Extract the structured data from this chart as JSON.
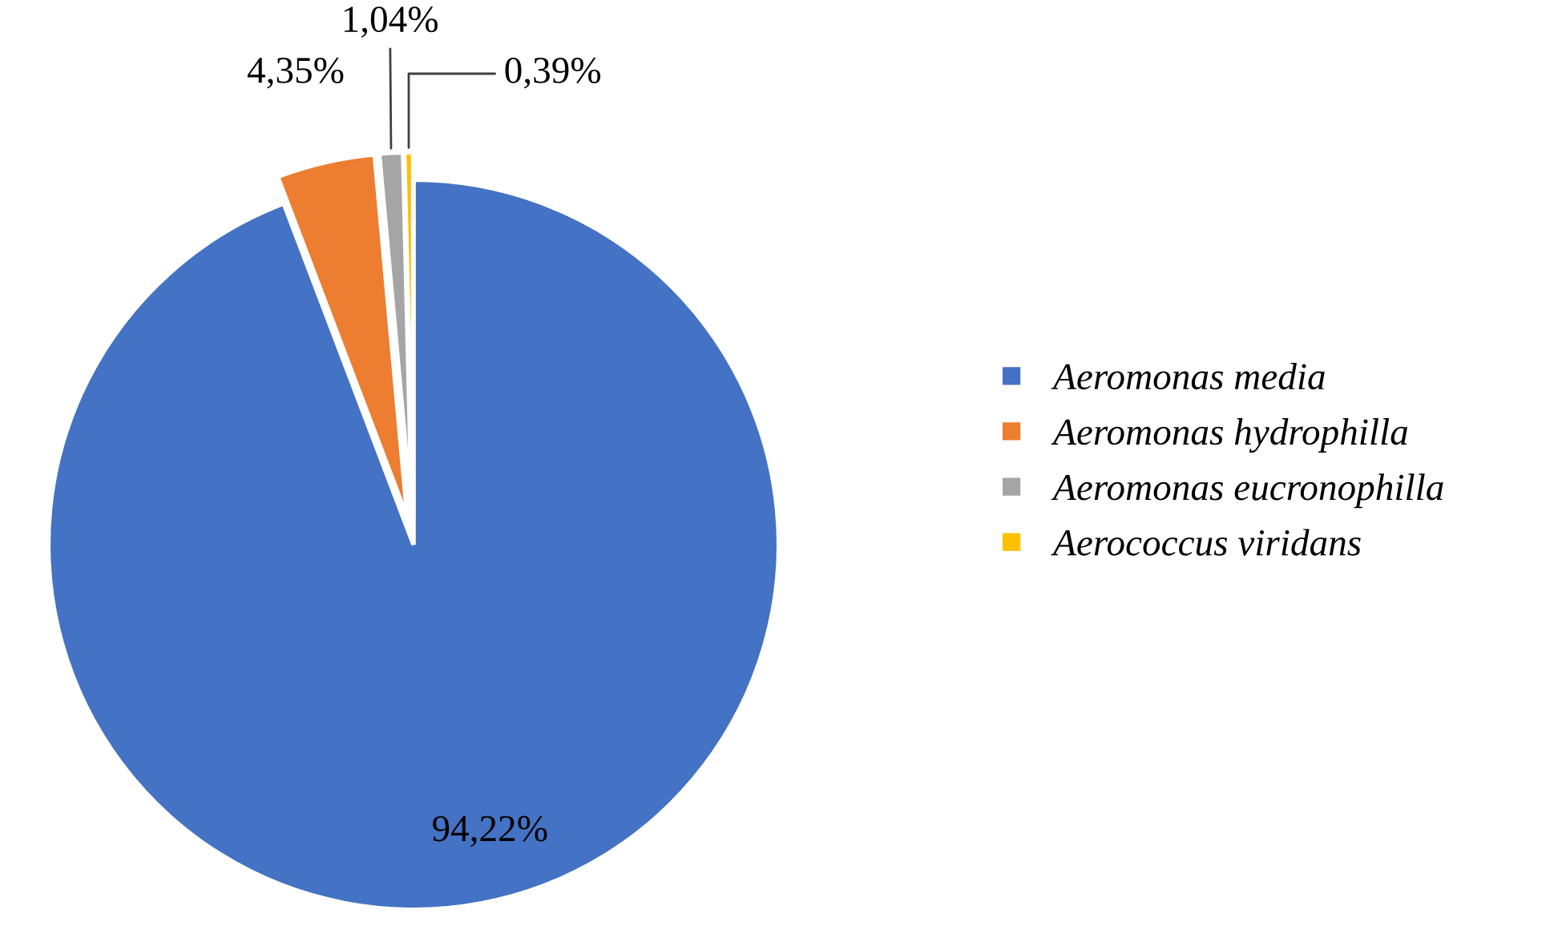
{
  "chart_data": {
    "type": "pie",
    "categories": [
      "Aeromonas media",
      "Aeromonas hydrophilla",
      "Aeromonas eucronophilla",
      "Aerococcus viridans"
    ],
    "values": [
      94.22,
      4.35,
      1.04,
      0.39
    ],
    "colors": [
      "#4472c4",
      "#ed7d31",
      "#a5a5a5",
      "#ffc000"
    ],
    "value_labels": [
      "94,22%",
      "4,35%",
      "1,04%",
      "0,39%"
    ],
    "legend": "right"
  }
}
